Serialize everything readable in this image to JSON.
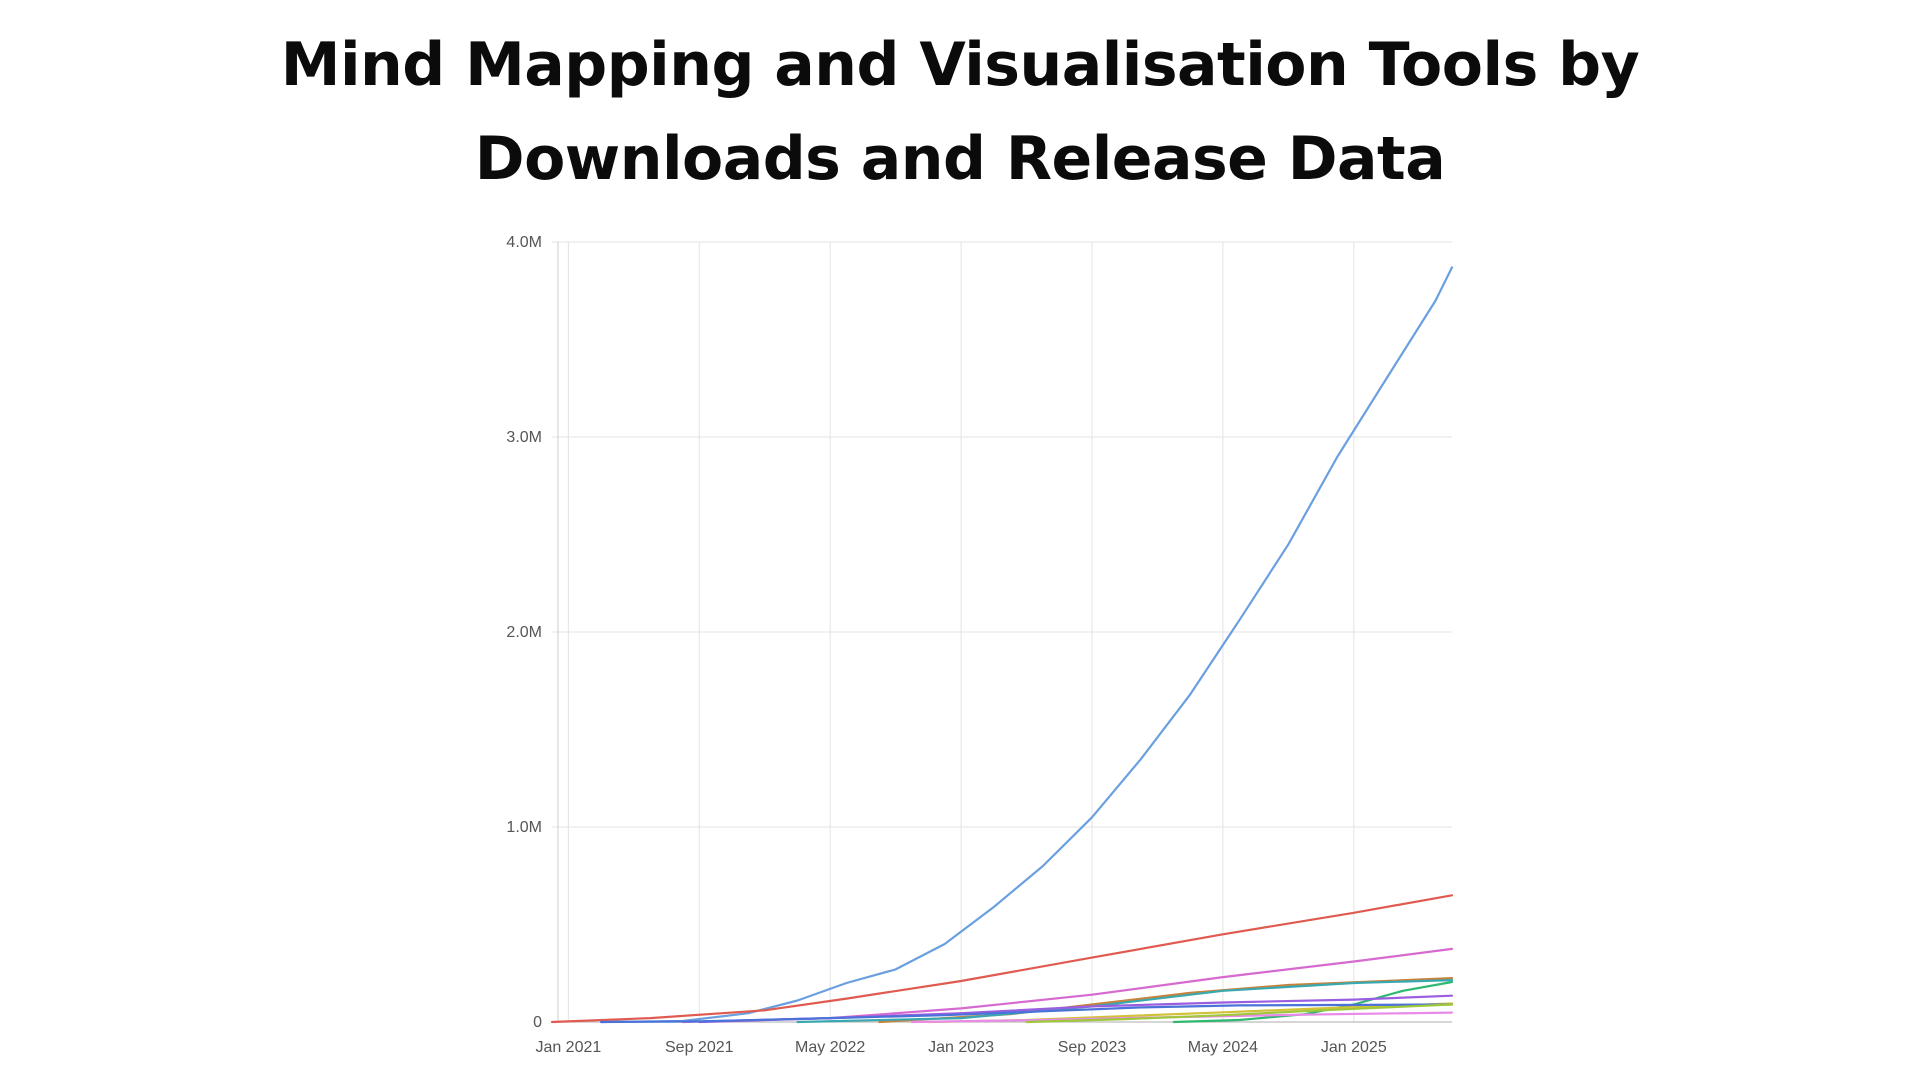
{
  "title": {
    "line1": "Mind Mapping and Visualisation Tools by",
    "line2": "Downloads and Release Data"
  },
  "chart_data": {
    "type": "line",
    "title": "Mind Mapping and Visualisation Tools by Downloads and Release Data",
    "xlabel": "",
    "ylabel": "",
    "x_range": [
      "2020-12",
      "2025-07"
    ],
    "ylim": [
      0,
      4000000
    ],
    "grid": true,
    "legend": "none",
    "x_ticks": [
      {
        "date": "2021-01",
        "label": "Jan 2021"
      },
      {
        "date": "2021-09",
        "label": "Sep 2021"
      },
      {
        "date": "2022-05",
        "label": "May 2022"
      },
      {
        "date": "2023-01",
        "label": "Jan 2023"
      },
      {
        "date": "2023-09",
        "label": "Sep 2023"
      },
      {
        "date": "2024-05",
        "label": "May 2024"
      },
      {
        "date": "2025-01",
        "label": "Jan 2025"
      }
    ],
    "y_ticks": [
      {
        "value": 0,
        "label": "0"
      },
      {
        "value": 1000000,
        "label": "1.0M"
      },
      {
        "value": 2000000,
        "label": "2.0M"
      },
      {
        "value": 3000000,
        "label": "3.0M"
      },
      {
        "value": 4000000,
        "label": "4.0M"
      }
    ],
    "series": [
      {
        "color": "#6a9fe0",
        "points": [
          [
            "2021-03",
            0
          ],
          [
            "2021-08",
            5000
          ],
          [
            "2021-12",
            45000
          ],
          [
            "2022-03",
            110000
          ],
          [
            "2022-06",
            200000
          ],
          [
            "2022-09",
            270000
          ],
          [
            "2022-12",
            400000
          ],
          [
            "2023-03",
            590000
          ],
          [
            "2023-06",
            800000
          ],
          [
            "2023-09",
            1050000
          ],
          [
            "2023-12",
            1350000
          ],
          [
            "2024-03",
            1680000
          ],
          [
            "2024-06",
            2060000
          ],
          [
            "2024-09",
            2450000
          ],
          [
            "2024-12",
            2900000
          ],
          [
            "2025-03",
            3300000
          ],
          [
            "2025-06",
            3700000
          ],
          [
            "2025-07",
            3870000
          ]
        ]
      },
      {
        "color": "#e05a50",
        "points": [
          [
            "2020-12",
            0
          ],
          [
            "2021-06",
            20000
          ],
          [
            "2022-01",
            60000
          ],
          [
            "2022-06",
            120000
          ],
          [
            "2023-01",
            210000
          ],
          [
            "2023-09",
            330000
          ],
          [
            "2024-05",
            450000
          ],
          [
            "2025-01",
            560000
          ],
          [
            "2025-07",
            650000
          ]
        ]
      },
      {
        "color": "#d66ad0",
        "points": [
          [
            "2021-08",
            0
          ],
          [
            "2022-05",
            20000
          ],
          [
            "2023-01",
            70000
          ],
          [
            "2023-09",
            140000
          ],
          [
            "2024-05",
            230000
          ],
          [
            "2025-01",
            310000
          ],
          [
            "2025-07",
            375000
          ]
        ]
      },
      {
        "color": "#c8823a",
        "points": [
          [
            "2022-08",
            0
          ],
          [
            "2023-04",
            40000
          ],
          [
            "2023-09",
            90000
          ],
          [
            "2024-03",
            150000
          ],
          [
            "2024-09",
            190000
          ],
          [
            "2025-03",
            210000
          ],
          [
            "2025-07",
            225000
          ]
        ]
      },
      {
        "color": "#3aa8b0",
        "points": [
          [
            "2022-03",
            0
          ],
          [
            "2023-01",
            20000
          ],
          [
            "2023-09",
            80000
          ],
          [
            "2024-05",
            160000
          ],
          [
            "2025-01",
            200000
          ],
          [
            "2025-07",
            215000
          ]
        ]
      },
      {
        "color": "#2fb870",
        "points": [
          [
            "2024-02",
            0
          ],
          [
            "2024-06",
            10000
          ],
          [
            "2024-10",
            40000
          ],
          [
            "2025-01",
            90000
          ],
          [
            "2025-04",
            160000
          ],
          [
            "2025-07",
            205000
          ]
        ]
      },
      {
        "color": "#9a5ee0",
        "points": [
          [
            "2021-09",
            0
          ],
          [
            "2022-05",
            20000
          ],
          [
            "2023-01",
            45000
          ],
          [
            "2023-09",
            80000
          ],
          [
            "2024-05",
            100000
          ],
          [
            "2025-01",
            115000
          ],
          [
            "2025-07",
            135000
          ]
        ]
      },
      {
        "color": "#d2c23a",
        "points": [
          [
            "2022-11",
            0
          ],
          [
            "2023-05",
            10000
          ],
          [
            "2023-11",
            30000
          ],
          [
            "2024-05",
            50000
          ],
          [
            "2024-11",
            70000
          ],
          [
            "2025-07",
            95000
          ]
        ]
      },
      {
        "color": "#4a72d8",
        "points": [
          [
            "2021-03",
            0
          ],
          [
            "2021-09",
            3000
          ],
          [
            "2022-05",
            20000
          ],
          [
            "2022-12",
            35000
          ],
          [
            "2023-06",
            55000
          ],
          [
            "2023-12",
            75000
          ],
          [
            "2024-06",
            85000
          ],
          [
            "2025-07",
            90000
          ]
        ]
      },
      {
        "color": "#e88ae8",
        "points": [
          [
            "2022-10",
            0
          ],
          [
            "2023-06",
            10000
          ],
          [
            "2024-02",
            25000
          ],
          [
            "2024-10",
            38000
          ],
          [
            "2025-07",
            48000
          ]
        ]
      },
      {
        "color": "#9fc83a",
        "points": [
          [
            "2023-05",
            0
          ],
          [
            "2023-11",
            15000
          ],
          [
            "2024-05",
            35000
          ],
          [
            "2024-11",
            60000
          ],
          [
            "2025-07",
            90000
          ]
        ]
      }
    ]
  }
}
